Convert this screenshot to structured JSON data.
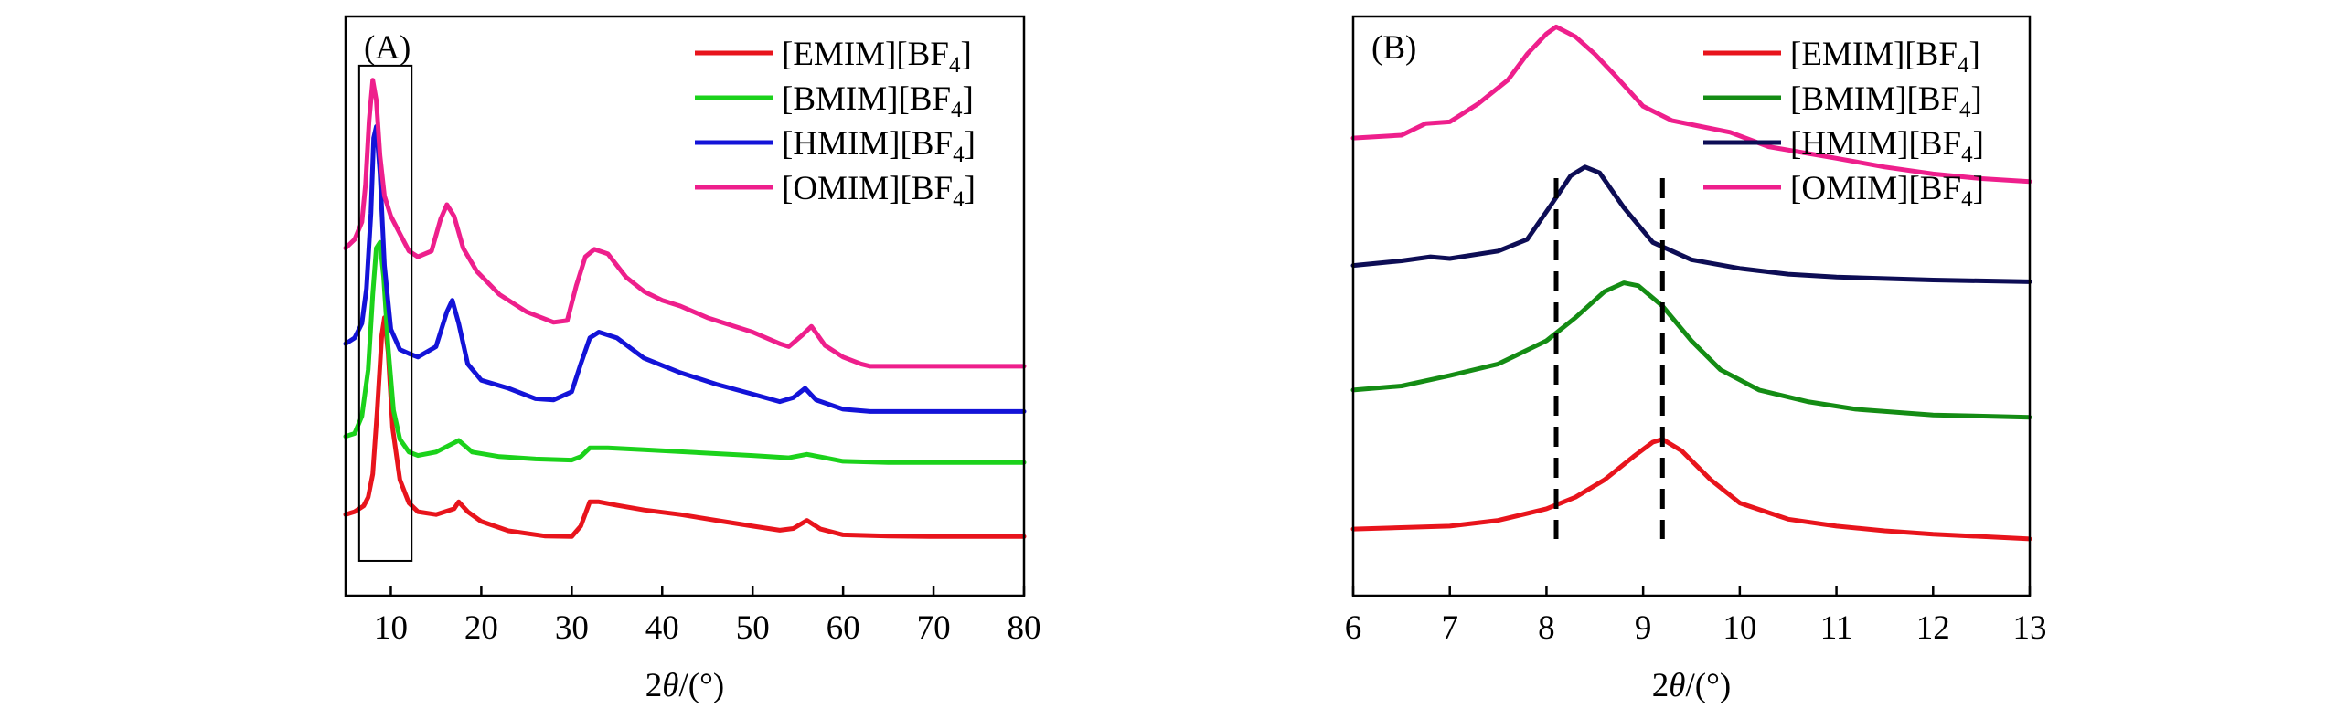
{
  "colors": {
    "EMIM": "#e8141c",
    "BMIM": "#1bd21b",
    "HMIM": "#1313d8",
    "OMIM": "#ee1f8c",
    "B_BMIM": "#148c14",
    "B_HMIM": "#0d0d55",
    "axis": "#000000"
  },
  "chart_data": [
    {
      "panel_label": "(A)",
      "type": "line",
      "xlabel": "2θ/(°)",
      "xlim": [
        5,
        80
      ],
      "xticks": [
        10,
        20,
        30,
        40,
        50,
        60,
        70,
        80
      ],
      "xtick_labels": [
        "10",
        "20",
        "30",
        "40",
        "50",
        "60",
        "70",
        "80"
      ],
      "y_scale": "arbitrary, stacked, no y ticks",
      "ylim": [
        0,
        10
      ],
      "legend_position": "top-right",
      "series": [
        {
          "key": "EMIM",
          "legend": [
            "[EMIM][BF",
            "4",
            "]"
          ],
          "x": [
            5,
            6,
            7,
            7.5,
            8,
            8.5,
            9,
            9.3,
            9.7,
            10.2,
            11,
            12,
            13,
            15,
            17,
            17.5,
            18.5,
            20,
            23,
            27,
            30,
            31,
            32,
            33,
            35,
            38,
            42,
            46,
            50,
            53,
            54.5,
            56,
            57.5,
            60,
            65,
            70,
            80
          ],
          "y": [
            1.4,
            1.45,
            1.55,
            1.7,
            2.1,
            3.2,
            4.5,
            4.8,
            4.2,
            2.9,
            2.0,
            1.6,
            1.45,
            1.4,
            1.5,
            1.62,
            1.45,
            1.28,
            1.12,
            1.03,
            1.02,
            1.2,
            1.62,
            1.62,
            1.56,
            1.48,
            1.4,
            1.3,
            1.2,
            1.13,
            1.16,
            1.3,
            1.15,
            1.05,
            1.03,
            1.02,
            1.02
          ]
        },
        {
          "key": "BMIM",
          "legend": [
            "[BMIM][BF",
            "4",
            "]"
          ],
          "x": [
            5,
            6,
            6.8,
            7.5,
            8,
            8.4,
            8.8,
            9.2,
            9.7,
            10.3,
            11,
            12,
            13,
            15,
            16.5,
            17.5,
            19,
            22,
            26,
            30,
            31,
            32,
            34,
            38,
            45,
            50,
            54,
            56,
            58,
            60,
            65,
            70,
            80
          ],
          "y": [
            2.75,
            2.8,
            3.1,
            3.9,
            5.2,
            6.0,
            6.1,
            5.5,
            4.3,
            3.2,
            2.7,
            2.48,
            2.42,
            2.48,
            2.6,
            2.68,
            2.48,
            2.4,
            2.36,
            2.34,
            2.4,
            2.55,
            2.55,
            2.52,
            2.46,
            2.42,
            2.38,
            2.44,
            2.38,
            2.32,
            2.3,
            2.3,
            2.3
          ]
        },
        {
          "key": "HMIM",
          "legend": [
            "[HMIM][BF",
            "4",
            "]"
          ],
          "x": [
            5,
            6,
            6.8,
            7.3,
            7.8,
            8.1,
            8.4,
            8.8,
            9.3,
            10,
            11,
            12,
            13,
            15,
            16.2,
            16.8,
            17.5,
            18.5,
            20,
            23,
            26,
            28,
            30,
            31,
            32,
            33,
            35,
            38,
            42,
            46,
            50,
            53,
            54.5,
            55.8,
            57,
            60,
            63,
            70,
            80
          ],
          "y": [
            4.35,
            4.45,
            4.7,
            5.3,
            6.6,
            7.9,
            8.1,
            7.3,
            5.7,
            4.6,
            4.25,
            4.18,
            4.12,
            4.3,
            4.9,
            5.1,
            4.7,
            4.0,
            3.72,
            3.58,
            3.4,
            3.38,
            3.52,
            4.0,
            4.45,
            4.55,
            4.45,
            4.1,
            3.85,
            3.65,
            3.48,
            3.35,
            3.42,
            3.58,
            3.38,
            3.22,
            3.18,
            3.18,
            3.18
          ]
        },
        {
          "key": "OMIM",
          "legend": [
            "[OMIM][BF",
            "4",
            "]"
          ],
          "x": [
            5,
            6,
            6.8,
            7.2,
            7.6,
            8,
            8.4,
            8.8,
            9.3,
            10,
            11,
            12,
            13,
            14.5,
            15.5,
            16.2,
            17,
            18,
            19.5,
            22,
            25,
            28,
            29.5,
            30.5,
            31.5,
            32.5,
            34,
            36,
            38,
            40,
            42,
            45,
            48,
            50,
            53,
            54,
            55.5,
            56.5,
            58,
            60,
            62,
            63,
            70,
            80
          ],
          "y": [
            6.0,
            6.15,
            6.45,
            7.1,
            8.2,
            8.9,
            8.55,
            7.6,
            6.9,
            6.55,
            6.25,
            5.95,
            5.85,
            5.95,
            6.5,
            6.75,
            6.55,
            6.0,
            5.6,
            5.2,
            4.9,
            4.72,
            4.75,
            5.35,
            5.85,
            5.98,
            5.9,
            5.5,
            5.25,
            5.1,
            5.0,
            4.8,
            4.65,
            4.55,
            4.35,
            4.3,
            4.5,
            4.65,
            4.32,
            4.12,
            4.0,
            3.96,
            3.96,
            3.96
          ]
        }
      ],
      "highlight_box": {
        "x": [
          6.5,
          12.3
        ],
        "y": [
          0.6,
          9.15
        ]
      }
    },
    {
      "panel_label": "(B)",
      "type": "line",
      "xlabel": "2θ/(°)",
      "xlim": [
        6,
        13
      ],
      "xticks": [
        6,
        7,
        8,
        9,
        10,
        11,
        12,
        13
      ],
      "xtick_labels": [
        "6",
        "7",
        "8",
        "9",
        "10",
        "11",
        "12",
        "13"
      ],
      "y_scale": "arbitrary, stacked, no y ticks",
      "ylim": [
        0,
        10
      ],
      "legend_position": "top-right",
      "dashed_lines_x": [
        8.1,
        9.2
      ],
      "series": [
        {
          "key": "EMIM",
          "legend": [
            "[EMIM][BF",
            "4",
            "]"
          ],
          "x": [
            6,
            7,
            7.5,
            8,
            8.3,
            8.6,
            8.9,
            9.1,
            9.2,
            9.4,
            9.7,
            10,
            10.5,
            11,
            11.5,
            12,
            12.5,
            13
          ],
          "y": [
            1.15,
            1.2,
            1.3,
            1.5,
            1.7,
            2.0,
            2.4,
            2.65,
            2.7,
            2.5,
            2.0,
            1.6,
            1.32,
            1.2,
            1.12,
            1.06,
            1.02,
            0.98
          ]
        },
        {
          "key": "B_BMIM",
          "legend": [
            "[BMIM][BF",
            "4",
            "]"
          ],
          "x": [
            6,
            6.5,
            7,
            7.5,
            8,
            8.3,
            8.6,
            8.8,
            8.95,
            9.2,
            9.5,
            9.8,
            10.2,
            10.7,
            11.2,
            12,
            13
          ],
          "y": [
            3.55,
            3.62,
            3.8,
            4.0,
            4.4,
            4.8,
            5.25,
            5.4,
            5.35,
            5.0,
            4.4,
            3.9,
            3.55,
            3.35,
            3.22,
            3.12,
            3.08
          ]
        },
        {
          "key": "B_HMIM",
          "legend": [
            "[HMIM][BF",
            "4",
            "]"
          ],
          "x": [
            6,
            6.5,
            6.8,
            7,
            7.5,
            7.8,
            8.05,
            8.25,
            8.4,
            8.55,
            8.8,
            9.1,
            9.5,
            10,
            10.5,
            11,
            12,
            13
          ],
          "y": [
            5.7,
            5.78,
            5.85,
            5.82,
            5.95,
            6.15,
            6.75,
            7.25,
            7.4,
            7.3,
            6.7,
            6.1,
            5.8,
            5.65,
            5.55,
            5.5,
            5.45,
            5.42
          ]
        },
        {
          "key": "OMIM",
          "legend": [
            "[OMIM][BF",
            "4",
            "]"
          ],
          "x": [
            6,
            6.5,
            6.75,
            7,
            7.3,
            7.6,
            7.8,
            8,
            8.1,
            8.3,
            8.5,
            8.7,
            9,
            9.3,
            9.6,
            9.9,
            10.3,
            11,
            11.5,
            12,
            12.5,
            13
          ],
          "y": [
            7.9,
            7.95,
            8.15,
            8.18,
            8.5,
            8.9,
            9.35,
            9.7,
            9.82,
            9.65,
            9.35,
            9.0,
            8.45,
            8.2,
            8.1,
            8.0,
            7.75,
            7.55,
            7.4,
            7.28,
            7.2,
            7.15
          ]
        }
      ]
    }
  ]
}
